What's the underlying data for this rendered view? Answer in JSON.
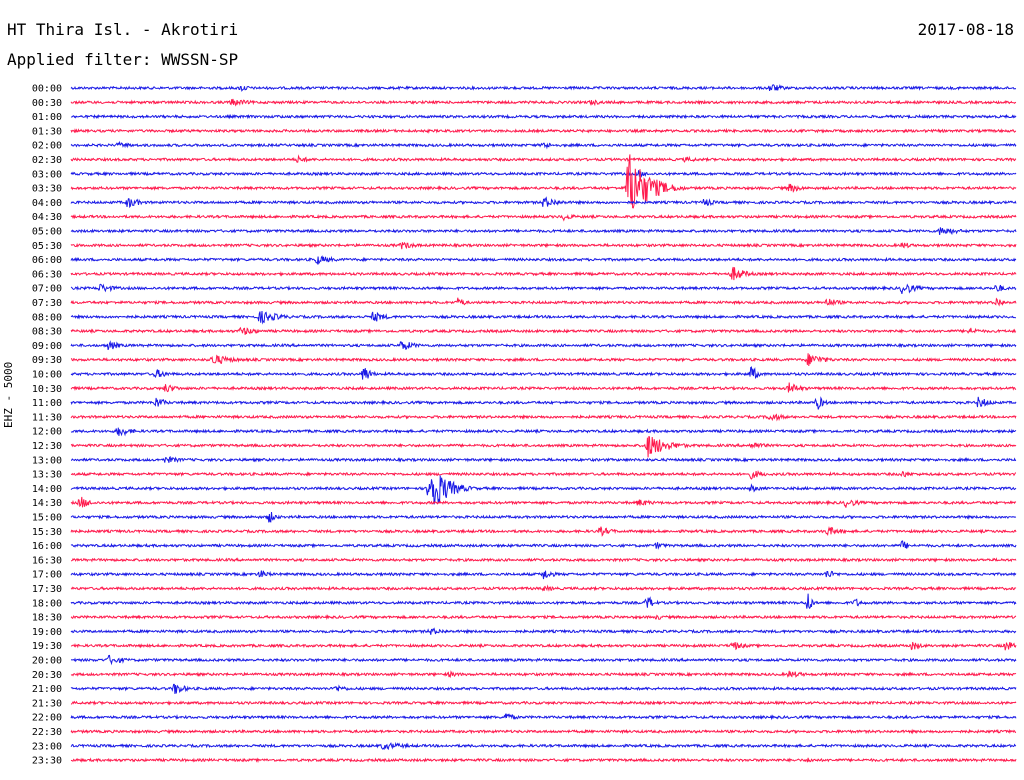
{
  "header": {
    "station": "HT Thira Isl. - Akrotiri",
    "date": "2017-08-18",
    "filter": "Applied filter: WWSSN-SP"
  },
  "y_axis_label": "EHZ - 5000",
  "colors": {
    "odd": "#1a1ae6",
    "even": "#ff1a4d",
    "text": "#000000"
  },
  "traces": [
    {
      "time": "00:00",
      "color": "blue",
      "events": [
        {
          "t": 0.18,
          "a": 4,
          "w": 0.03
        },
        {
          "t": 0.74,
          "a": 5,
          "w": 0.04
        }
      ]
    },
    {
      "time": "00:30",
      "color": "red",
      "events": [
        {
          "t": 0.17,
          "a": 4,
          "w": 0.06
        },
        {
          "t": 0.55,
          "a": 3,
          "w": 0.05
        }
      ]
    },
    {
      "time": "01:00",
      "color": "blue",
      "events": [
        {
          "t": 0.22,
          "a": 2,
          "w": 0.03
        }
      ]
    },
    {
      "time": "01:30",
      "color": "red",
      "events": []
    },
    {
      "time": "02:00",
      "color": "blue",
      "events": [
        {
          "t": 0.05,
          "a": 3,
          "w": 0.06
        },
        {
          "t": 0.5,
          "a": 4,
          "w": 0.03
        }
      ]
    },
    {
      "time": "02:30",
      "color": "red",
      "events": [
        {
          "t": 0.24,
          "a": 4,
          "w": 0.04
        },
        {
          "t": 0.65,
          "a": 3,
          "w": 0.05
        }
      ]
    },
    {
      "time": "03:00",
      "color": "blue",
      "events": [
        {
          "t": 0.6,
          "a": 4,
          "w": 0.03
        }
      ]
    },
    {
      "time": "03:30",
      "color": "red",
      "events": [
        {
          "t": 0.59,
          "a": 38,
          "w": 0.06
        },
        {
          "t": 0.76,
          "a": 5,
          "w": 0.04
        }
      ]
    },
    {
      "time": "04:00",
      "color": "blue",
      "events": [
        {
          "t": 0.06,
          "a": 6,
          "w": 0.04
        },
        {
          "t": 0.5,
          "a": 6,
          "w": 0.05
        },
        {
          "t": 0.67,
          "a": 5,
          "w": 0.03
        }
      ]
    },
    {
      "time": "04:30",
      "color": "red",
      "events": [
        {
          "t": 0.52,
          "a": 4,
          "w": 0.04
        }
      ]
    },
    {
      "time": "05:00",
      "color": "blue",
      "events": [
        {
          "t": 0.92,
          "a": 5,
          "w": 0.06
        }
      ]
    },
    {
      "time": "05:30",
      "color": "red",
      "events": [
        {
          "t": 0.35,
          "a": 4,
          "w": 0.05
        },
        {
          "t": 0.88,
          "a": 4,
          "w": 0.03
        }
      ]
    },
    {
      "time": "06:00",
      "color": "blue",
      "events": [
        {
          "t": 0.26,
          "a": 5,
          "w": 0.05
        }
      ]
    },
    {
      "time": "06:30",
      "color": "red",
      "events": [
        {
          "t": 0.7,
          "a": 8,
          "w": 0.04
        }
      ]
    },
    {
      "time": "07:00",
      "color": "blue",
      "events": [
        {
          "t": 0.03,
          "a": 5,
          "w": 0.05
        },
        {
          "t": 0.88,
          "a": 7,
          "w": 0.04
        },
        {
          "t": 0.98,
          "a": 6,
          "w": 0.02
        }
      ]
    },
    {
      "time": "07:30",
      "color": "red",
      "events": [
        {
          "t": 0.41,
          "a": 6,
          "w": 0.02
        },
        {
          "t": 0.8,
          "a": 5,
          "w": 0.04
        },
        {
          "t": 0.98,
          "a": 6,
          "w": 0.02
        }
      ]
    },
    {
      "time": "08:00",
      "color": "blue",
      "events": [
        {
          "t": 0.2,
          "a": 7,
          "w": 0.06
        },
        {
          "t": 0.32,
          "a": 6,
          "w": 0.04
        }
      ]
    },
    {
      "time": "08:30",
      "color": "red",
      "events": [
        {
          "t": 0.18,
          "a": 5,
          "w": 0.05
        },
        {
          "t": 0.95,
          "a": 4,
          "w": 0.04
        }
      ]
    },
    {
      "time": "09:00",
      "color": "blue",
      "events": [
        {
          "t": 0.04,
          "a": 6,
          "w": 0.03
        },
        {
          "t": 0.35,
          "a": 6,
          "w": 0.04
        }
      ]
    },
    {
      "time": "09:30",
      "color": "red",
      "events": [
        {
          "t": 0.15,
          "a": 6,
          "w": 0.06
        },
        {
          "t": 0.78,
          "a": 7,
          "w": 0.05
        }
      ]
    },
    {
      "time": "10:00",
      "color": "blue",
      "events": [
        {
          "t": 0.09,
          "a": 5,
          "w": 0.04
        },
        {
          "t": 0.31,
          "a": 10,
          "w": 0.02
        },
        {
          "t": 0.72,
          "a": 9,
          "w": 0.02
        }
      ]
    },
    {
      "time": "10:30",
      "color": "red",
      "events": [
        {
          "t": 0.1,
          "a": 5,
          "w": 0.04
        },
        {
          "t": 0.76,
          "a": 6,
          "w": 0.04
        }
      ]
    },
    {
      "time": "11:00",
      "color": "blue",
      "events": [
        {
          "t": 0.09,
          "a": 6,
          "w": 0.03
        },
        {
          "t": 0.79,
          "a": 8,
          "w": 0.02
        },
        {
          "t": 0.96,
          "a": 6,
          "w": 0.04
        }
      ]
    },
    {
      "time": "11:30",
      "color": "red",
      "events": [
        {
          "t": 0.74,
          "a": 5,
          "w": 0.04
        }
      ]
    },
    {
      "time": "12:00",
      "color": "blue",
      "events": [
        {
          "t": 0.05,
          "a": 6,
          "w": 0.04
        }
      ]
    },
    {
      "time": "12:30",
      "color": "red",
      "events": [
        {
          "t": 0.61,
          "a": 13,
          "w": 0.06
        },
        {
          "t": 0.72,
          "a": 4,
          "w": 0.05
        }
      ]
    },
    {
      "time": "13:00",
      "color": "blue",
      "events": [
        {
          "t": 0.1,
          "a": 4,
          "w": 0.05
        }
      ]
    },
    {
      "time": "13:30",
      "color": "red",
      "events": [
        {
          "t": 0.72,
          "a": 5,
          "w": 0.04
        },
        {
          "t": 0.88,
          "a": 4,
          "w": 0.03
        }
      ]
    },
    {
      "time": "14:00",
      "color": "blue",
      "events": [
        {
          "t": 0.38,
          "a": 28,
          "w": 0.05
        },
        {
          "t": 0.72,
          "a": 4,
          "w": 0.03
        }
      ]
    },
    {
      "time": "14:30",
      "color": "red",
      "events": [
        {
          "t": 0.01,
          "a": 7,
          "w": 0.03
        },
        {
          "t": 0.6,
          "a": 4,
          "w": 0.05
        },
        {
          "t": 0.82,
          "a": 5,
          "w": 0.04
        }
      ]
    },
    {
      "time": "15:00",
      "color": "blue",
      "events": [
        {
          "t": 0.21,
          "a": 7,
          "w": 0.02
        }
      ]
    },
    {
      "time": "15:30",
      "color": "red",
      "events": [
        {
          "t": 0.56,
          "a": 5,
          "w": 0.04
        },
        {
          "t": 0.8,
          "a": 5,
          "w": 0.05
        }
      ]
    },
    {
      "time": "16:00",
      "color": "blue",
      "events": [
        {
          "t": 0.62,
          "a": 4,
          "w": 0.03
        },
        {
          "t": 0.88,
          "a": 6,
          "w": 0.02
        }
      ]
    },
    {
      "time": "16:30",
      "color": "red",
      "events": []
    },
    {
      "time": "17:00",
      "color": "blue",
      "events": [
        {
          "t": 0.2,
          "a": 5,
          "w": 0.03
        },
        {
          "t": 0.5,
          "a": 6,
          "w": 0.03
        },
        {
          "t": 0.8,
          "a": 5,
          "w": 0.03
        }
      ]
    },
    {
      "time": "17:30",
      "color": "red",
      "events": [
        {
          "t": 0.5,
          "a": 3,
          "w": 0.05
        }
      ]
    },
    {
      "time": "18:00",
      "color": "blue",
      "events": [
        {
          "t": 0.61,
          "a": 8,
          "w": 0.02
        },
        {
          "t": 0.78,
          "a": 14,
          "w": 0.01
        },
        {
          "t": 0.83,
          "a": 5,
          "w": 0.02
        }
      ]
    },
    {
      "time": "18:30",
      "color": "red",
      "events": [
        {
          "t": 0.62,
          "a": 3,
          "w": 0.03
        }
      ]
    },
    {
      "time": "19:00",
      "color": "blue",
      "events": [
        {
          "t": 0.38,
          "a": 4,
          "w": 0.05
        }
      ]
    },
    {
      "time": "19:30",
      "color": "red",
      "events": [
        {
          "t": 0.7,
          "a": 5,
          "w": 0.04
        },
        {
          "t": 0.89,
          "a": 5,
          "w": 0.03
        },
        {
          "t": 0.99,
          "a": 7,
          "w": 0.02
        }
      ]
    },
    {
      "time": "20:00",
      "color": "blue",
      "events": [
        {
          "t": 0.04,
          "a": 5,
          "w": 0.05
        }
      ]
    },
    {
      "time": "20:30",
      "color": "red",
      "events": [
        {
          "t": 0.4,
          "a": 3,
          "w": 0.05
        },
        {
          "t": 0.76,
          "a": 4,
          "w": 0.05
        }
      ]
    },
    {
      "time": "21:00",
      "color": "blue",
      "events": [
        {
          "t": 0.11,
          "a": 7,
          "w": 0.03
        },
        {
          "t": 0.28,
          "a": 4,
          "w": 0.04
        }
      ]
    },
    {
      "time": "21:30",
      "color": "red",
      "events": []
    },
    {
      "time": "22:00",
      "color": "blue",
      "events": [
        {
          "t": 0.46,
          "a": 5,
          "w": 0.03
        }
      ]
    },
    {
      "time": "22:30",
      "color": "red",
      "events": []
    },
    {
      "time": "23:00",
      "color": "blue",
      "events": [
        {
          "t": 0.33,
          "a": 4,
          "w": 0.08
        }
      ]
    },
    {
      "time": "23:30",
      "color": "red",
      "events": [
        {
          "t": 0.78,
          "a": 3,
          "w": 0.03
        }
      ]
    }
  ]
}
